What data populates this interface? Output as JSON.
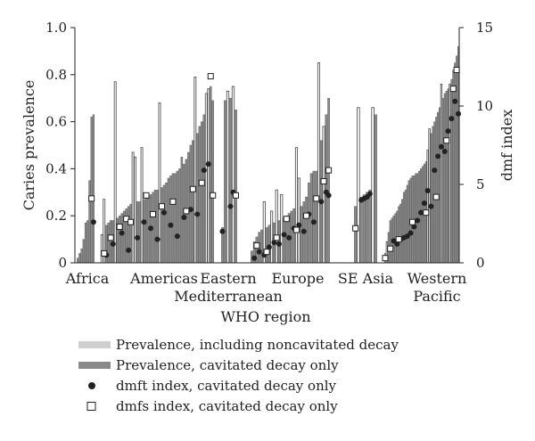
{
  "chart_data": {
    "type": "bar",
    "xlabel": "WHO region",
    "ylabel_left": "Caries prevalence",
    "ylabel_right": "dmf index",
    "ylim_left": [
      0,
      1.0
    ],
    "ylim_right": [
      0,
      15
    ],
    "yticks_left": [
      "0",
      "0.2",
      "0.4",
      "0.6",
      "0.8",
      "1.0"
    ],
    "yticks_right": [
      "0",
      "5",
      "10",
      "15"
    ],
    "legend_placement": "bottom",
    "colors": {
      "light": "#cfcfcf",
      "dark": "#8a8a8a",
      "outline": "#555555"
    },
    "legend": [
      {
        "label": "Prevalence, including noncavitated decay",
        "kind": "light-bar"
      },
      {
        "label": "Prevalence, cavitated decay only",
        "kind": "dark-bar"
      },
      {
        "label": "dmft index, cavitated decay only",
        "kind": "filled-circle"
      },
      {
        "label": "dmfs index, cavitated decay only",
        "kind": "open-square"
      }
    ],
    "regions": [
      {
        "name": "Africa",
        "label_lines": [
          "Africa"
        ],
        "prevalence": [
          0.02,
          0.04,
          0.06,
          0.1,
          0.17,
          0.18,
          0.35,
          0.62,
          0.63
        ],
        "noncav_indices": [],
        "dmft": [
          [
            8,
            2.6
          ]
        ],
        "dmfs": [
          [
            7,
            4.1
          ]
        ]
      },
      {
        "name": "Americas",
        "label_lines": [
          "Americas"
        ],
        "prevalence": [
          0.12,
          0.27,
          0.16,
          0.17,
          0.18,
          0.18,
          0.77,
          0.19,
          0.2,
          0.21,
          0.22,
          0.23,
          0.24,
          0.25,
          0.47,
          0.45,
          0.26,
          0.26,
          0.49,
          0.27,
          0.28,
          0.28,
          0.29,
          0.3,
          0.31,
          0.31,
          0.68,
          0.32,
          0.33,
          0.34,
          0.36,
          0.37,
          0.38,
          0.38,
          0.39,
          0.4,
          0.45,
          0.42,
          0.44,
          0.47,
          0.5,
          0.52,
          0.79,
          0.55,
          0.58,
          0.6,
          0.63,
          0.72,
          0.74,
          0.75,
          0.69
        ],
        "noncav_indices": [
          0,
          1,
          6,
          14,
          15,
          18,
          26,
          42,
          47,
          48
        ],
        "dmft": [
          [
            2,
            0.5
          ],
          [
            5,
            1.2
          ],
          [
            9,
            1.9
          ],
          [
            12,
            0.8
          ],
          [
            16,
            1.6
          ],
          [
            19,
            2.6
          ],
          [
            22,
            2.2
          ],
          [
            25,
            1.5
          ],
          [
            28,
            3.2
          ],
          [
            31,
            2.4
          ],
          [
            34,
            1.7
          ],
          [
            37,
            2.9
          ],
          [
            40,
            3.4
          ],
          [
            43,
            3.1
          ],
          [
            46,
            5.9
          ],
          [
            48,
            6.3
          ]
        ],
        "dmfs": [
          [
            1,
            0.6
          ],
          [
            4,
            1.6
          ],
          [
            8,
            2.3
          ],
          [
            11,
            2.8
          ],
          [
            13,
            2.6
          ],
          [
            20,
            4.3
          ],
          [
            23,
            3.1
          ],
          [
            27,
            3.6
          ],
          [
            32,
            3.9
          ],
          [
            38,
            3.3
          ],
          [
            41,
            4.7
          ],
          [
            45,
            5.1
          ],
          [
            49,
            11.9
          ],
          [
            50,
            4.3
          ]
        ]
      },
      {
        "name": "Eastern Mediterranean",
        "label_lines": [
          "Eastern",
          "Mediterranean"
        ],
        "prevalence": [
          0.15,
          0.69,
          0.73,
          0.7,
          0.75,
          0.65
        ],
        "noncav_indices": [
          2,
          4
        ],
        "dmft": [
          [
            0,
            2.0
          ],
          [
            3,
            3.6
          ],
          [
            4,
            4.5
          ]
        ],
        "dmfs": [
          [
            5,
            4.3
          ]
        ]
      },
      {
        "name": "Europe",
        "label_lines": [
          "Europe"
        ],
        "prevalence": [
          0.05,
          0.09,
          0.11,
          0.13,
          0.14,
          0.26,
          0.15,
          0.16,
          0.22,
          0.17,
          0.31,
          0.18,
          0.29,
          0.19,
          0.2,
          0.21,
          0.22,
          0.23,
          0.49,
          0.36,
          0.24,
          0.26,
          0.28,
          0.34,
          0.38,
          0.39,
          0.39,
          0.85,
          0.52,
          0.58,
          0.63,
          0.7
        ],
        "noncav_indices": [
          5,
          8,
          10,
          12,
          18,
          19,
          27,
          29
        ],
        "dmft": [
          [
            1,
            0.3
          ],
          [
            3,
            0.7
          ],
          [
            5,
            0.5
          ],
          [
            7,
            1.0
          ],
          [
            9,
            1.3
          ],
          [
            11,
            1.2
          ],
          [
            13,
            1.8
          ],
          [
            15,
            1.6
          ],
          [
            17,
            2.2
          ],
          [
            19,
            2.4
          ],
          [
            21,
            2.0
          ],
          [
            23,
            3.1
          ],
          [
            25,
            2.6
          ],
          [
            28,
            3.9
          ],
          [
            30,
            4.5
          ],
          [
            31,
            4.3
          ]
        ],
        "dmfs": [
          [
            2,
            1.1
          ],
          [
            6,
            0.7
          ],
          [
            10,
            1.6
          ],
          [
            14,
            2.8
          ],
          [
            18,
            2.1
          ],
          [
            22,
            3.0
          ],
          [
            26,
            4.1
          ],
          [
            29,
            5.2
          ],
          [
            31,
            5.9
          ]
        ]
      },
      {
        "name": "SE Asia",
        "label_lines": [
          "SE Asia"
        ],
        "prevalence": [
          0.24,
          0.66,
          0.28,
          0.29,
          0.3,
          0.31,
          0.66,
          0.63
        ],
        "noncav_indices": [
          1,
          6
        ],
        "dmft": [
          [
            2,
            4.0
          ],
          [
            3,
            4.1
          ],
          [
            4,
            4.2
          ],
          [
            5,
            4.4
          ]
        ],
        "dmfs": [
          [
            0,
            2.2
          ]
        ]
      },
      {
        "name": "Western Pacific",
        "label_lines": [
          "Western",
          "Pacific"
        ],
        "prevalence": [
          0.04,
          0.09,
          0.13,
          0.18,
          0.19,
          0.2,
          0.21,
          0.22,
          0.24,
          0.25,
          0.27,
          0.3,
          0.31,
          0.33,
          0.35,
          0.36,
          0.37,
          0.37,
          0.38,
          0.38,
          0.39,
          0.4,
          0.41,
          0.42,
          0.43,
          0.48,
          0.57,
          0.55,
          0.58,
          0.6,
          0.62,
          0.64,
          0.66,
          0.76,
          0.7,
          0.72,
          0.73,
          0.74,
          0.76,
          0.78,
          0.82,
          0.85,
          0.88,
          0.92
        ],
        "noncav_indices": [
          1,
          25,
          26,
          33,
          38
        ],
        "dmft": [
          [
            5,
            1.4
          ],
          [
            7,
            1.2
          ],
          [
            9,
            1.5
          ],
          [
            11,
            1.6
          ],
          [
            13,
            1.7
          ],
          [
            15,
            1.9
          ],
          [
            17,
            2.3
          ],
          [
            19,
            2.7
          ],
          [
            21,
            3.2
          ],
          [
            23,
            3.8
          ],
          [
            25,
            4.6
          ],
          [
            27,
            3.6
          ],
          [
            29,
            5.9
          ],
          [
            31,
            6.8
          ],
          [
            33,
            7.4
          ],
          [
            35,
            7.1
          ],
          [
            37,
            8.4
          ],
          [
            39,
            9.2
          ],
          [
            41,
            10.3
          ],
          [
            43,
            9.5
          ]
        ],
        "dmfs": [
          [
            0,
            0.3
          ],
          [
            3,
            0.9
          ],
          [
            8,
            1.5
          ],
          [
            16,
            2.6
          ],
          [
            24,
            3.2
          ],
          [
            30,
            4.2
          ],
          [
            36,
            7.8
          ],
          [
            40,
            11.1
          ],
          [
            42,
            12.3
          ]
        ]
      }
    ]
  }
}
